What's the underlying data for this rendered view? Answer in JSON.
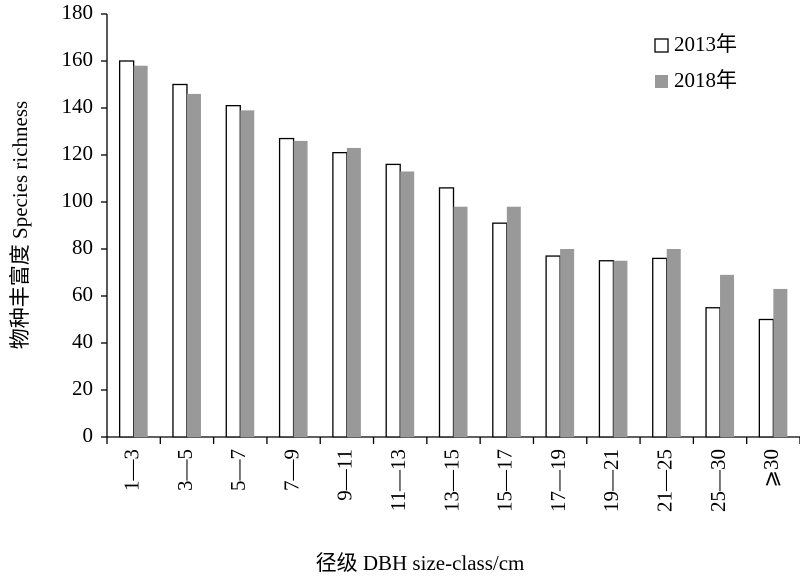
{
  "chart_data": {
    "type": "bar",
    "xlabel": "径级 DBH size-class/cm",
    "ylabel": "物种丰富度 Species richness",
    "categories": [
      "1—3",
      "3—5",
      "5—7",
      "7—9",
      "9—11",
      "11—13",
      "13—15",
      "15—17",
      "17—19",
      "19—21",
      "21—25",
      "25—30",
      "⩾30"
    ],
    "series": [
      {
        "name": "2013年",
        "color": "#ffffff",
        "values": [
          160,
          150,
          141,
          127,
          121,
          116,
          106,
          91,
          77,
          75,
          76,
          55,
          50
        ]
      },
      {
        "name": "2018年",
        "color": "#999999",
        "values": [
          158,
          146,
          139,
          126,
          123,
          113,
          98,
          98,
          80,
          75,
          80,
          69,
          63
        ]
      }
    ],
    "ylim": [
      0,
      180
    ],
    "yticks": [
      0,
      20,
      40,
      60,
      80,
      100,
      120,
      140,
      160,
      180
    ],
    "legend": "upper right",
    "grid": false
  }
}
